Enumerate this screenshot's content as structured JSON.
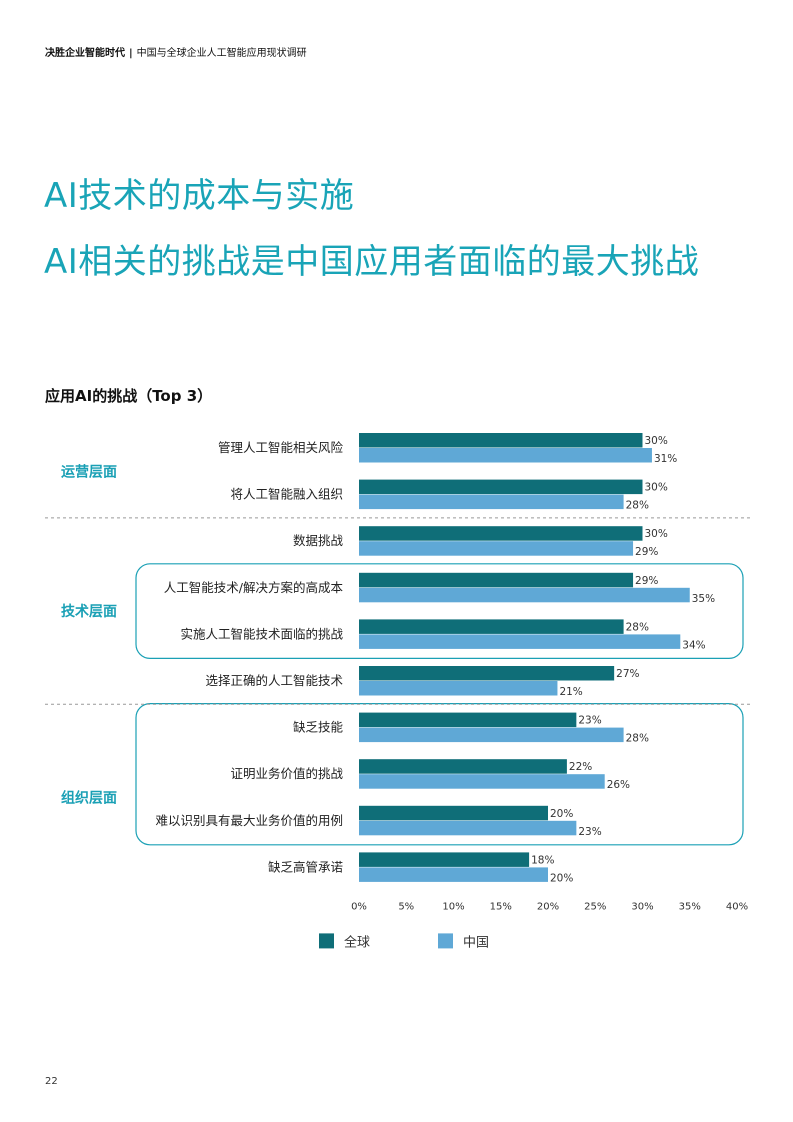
{
  "header": {
    "series": "决胜企业智能时代",
    "separator": "|",
    "subtitle": "中国与全球企业人工智能应用现状调研"
  },
  "headline": {
    "line1": "AI技术的成本与实施",
    "line2": "AI相关的挑战是中国应用者面临的最大挑战"
  },
  "chart_title": "应用AI的挑战（Top 3）",
  "page_number": "22",
  "colors": {
    "global": "#0f6e78",
    "china": "#5fa8d6",
    "heading_accent": "#19a4b7",
    "group_label": "#1aa0b5",
    "box_border": "#1aa0b5"
  },
  "chart_data": {
    "type": "bar",
    "orientation": "horizontal",
    "categories": [
      "管理人工智能相关风险",
      "将人工智能融入组织",
      "数据挑战",
      "人工智能技术/解决方案的高成本",
      "实施人工智能技术面临的挑战",
      "选择正确的人工智能技术",
      "缺乏技能",
      "证明业务价值的挑战",
      "难以识别具有最大业务价值的用例",
      "缺乏高管承诺"
    ],
    "series": [
      {
        "name": "全球",
        "values": [
          30,
          30,
          30,
          29,
          28,
          27,
          23,
          22,
          20,
          18
        ]
      },
      {
        "name": "中国",
        "values": [
          31,
          28,
          29,
          35,
          34,
          21,
          28,
          26,
          23,
          20
        ]
      }
    ],
    "xlim": [
      0,
      40
    ],
    "xticks": [
      "0%",
      "5%",
      "10%",
      "15%",
      "20%",
      "25%",
      "30%",
      "35%",
      "40%"
    ],
    "value_suffix": "%",
    "groups": [
      {
        "label": "运营层面",
        "first": 0,
        "last": 1
      },
      {
        "label": "技术层面",
        "first": 2,
        "last": 5
      },
      {
        "label": "组织层面",
        "first": 6,
        "last": 9
      }
    ],
    "highlighted": [
      {
        "first": 3,
        "last": 4
      },
      {
        "first": 6,
        "last": 8
      }
    ],
    "legend_position": "bottom"
  }
}
